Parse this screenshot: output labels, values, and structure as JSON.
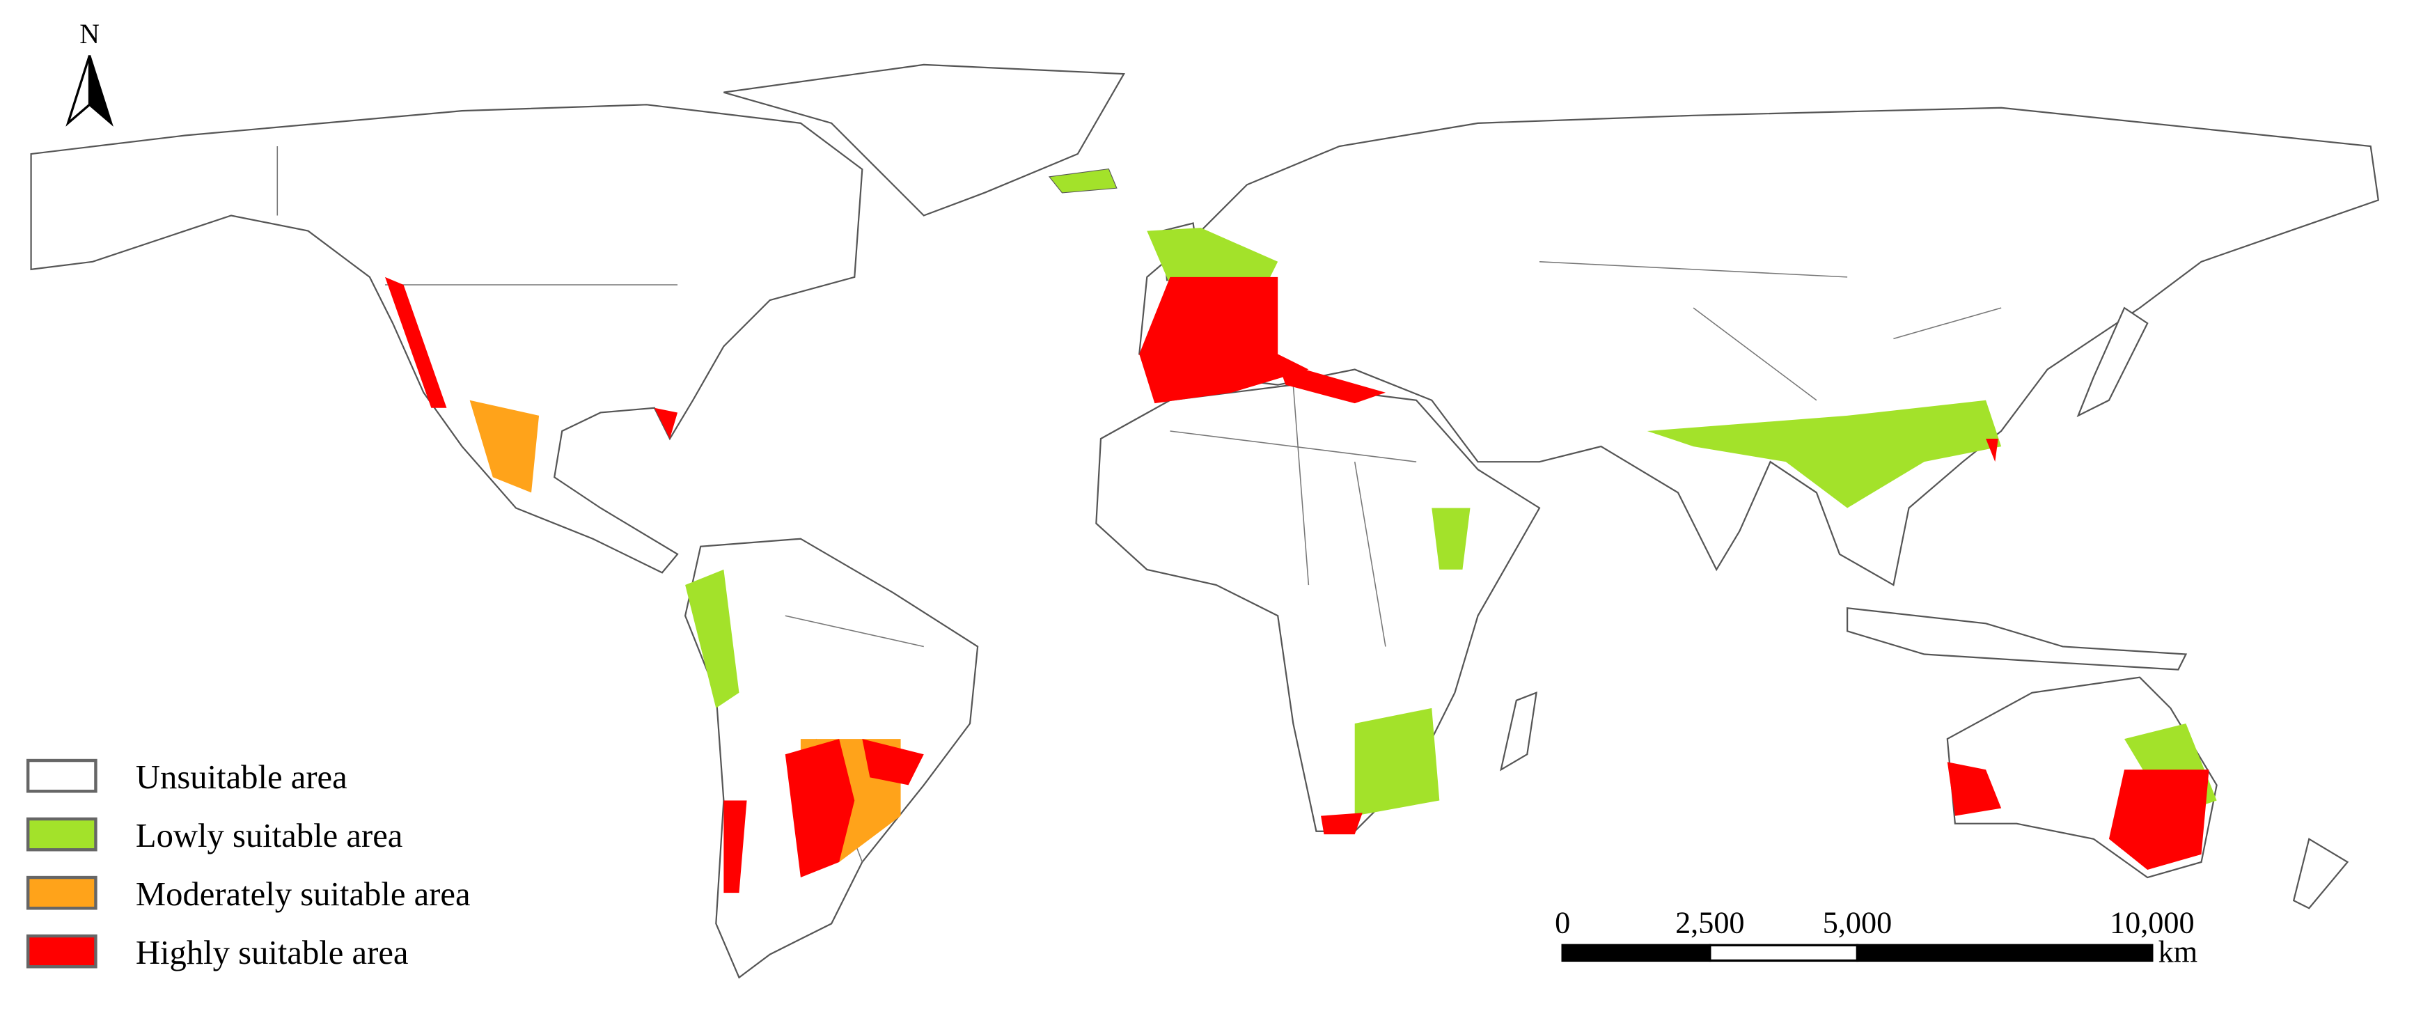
{
  "north_label": "N",
  "legend": [
    {
      "label": "Unsuitable area",
      "color": "#ffffff"
    },
    {
      "label": "Lowly suitable area",
      "color": "#a3e22a"
    },
    {
      "label": "Moderately suitable area",
      "color": "#ffa31a"
    },
    {
      "label": "Highly suitable area",
      "color": "#ff0000"
    }
  ],
  "scale_bar": {
    "lim": [
      0,
      10000
    ],
    "ticks": [
      0,
      {
        "value": 2500,
        "label": "2,500"
      },
      {
        "value": 5000,
        "label": "5,000"
      },
      {
        "value": 10000,
        "label": "10,000"
      }
    ],
    "unit": "km"
  }
}
